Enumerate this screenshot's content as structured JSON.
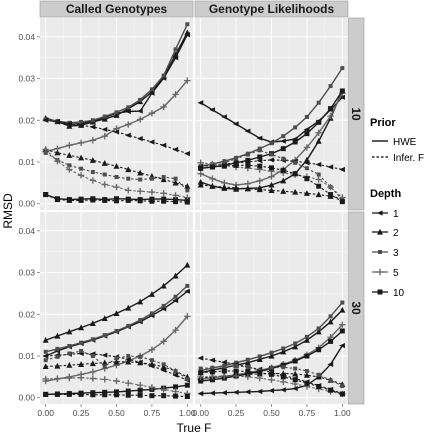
{
  "chart_data": {
    "type": "line",
    "xlabel": "True F",
    "ylabel": "RMSD",
    "x": [
      0,
      0.083,
      0.167,
      0.25,
      0.333,
      0.417,
      0.5,
      0.583,
      0.667,
      0.75,
      0.833,
      0.917,
      1.0
    ],
    "xticks": [
      0,
      0.25,
      0.5,
      0.75,
      1.0
    ],
    "xtick_labels": [
      "0.00",
      "0.25",
      "0.50",
      "0.75",
      "1.00"
    ],
    "yticks": [
      0,
      0.01,
      0.02,
      0.03,
      0.04
    ],
    "ytick_labels": [
      "0.00",
      "0.01",
      "0.02",
      "0.03",
      "0.04"
    ],
    "xlim": [
      -0.04,
      1.04
    ],
    "ylim": [
      -0.0015,
      0.0445
    ],
    "grid": true,
    "col_facets": [
      "Called Genotypes",
      "Genotype Likelihoods"
    ],
    "row_facets": [
      "10",
      "30"
    ],
    "legend": {
      "position": "right",
      "prior_title": "Prior",
      "prior_entries": [
        {
          "label": "HWE",
          "linetype": "solid"
        },
        {
          "label": "Infer. F",
          "linetype": "dashed"
        }
      ],
      "depth_title": "Depth",
      "depth_entries": [
        {
          "label": "1",
          "shape": "tri-left",
          "color": "#1a1a1a"
        },
        {
          "label": "2",
          "shape": "triangle",
          "color": "#1a1a1a"
        },
        {
          "label": "3",
          "shape": "square-small",
          "color": "#4d4d4d"
        },
        {
          "label": "5",
          "shape": "plus",
          "color": "#666666"
        },
        {
          "label": "10",
          "shape": "square",
          "color": "#1a1a1a"
        }
      ]
    },
    "panels": [
      {
        "col": "Called Genotypes",
        "row": "10",
        "series": [
          {
            "prior": "HWE",
            "depth": "1",
            "values": [
              0.0201,
              0.0196,
              0.019,
              0.0192,
              0.0198,
              0.0207,
              0.0217,
              0.0221,
              0.0222,
              0.0265,
              0.0301,
              0.035,
              0.0405
            ]
          },
          {
            "prior": "HWE",
            "depth": "2",
            "values": [
              0.0205,
              0.0197,
              0.0186,
              0.0188,
              0.0196,
              0.0203,
              0.0212,
              0.0228,
              0.0245,
              0.0268,
              0.0305,
              0.0357,
              0.041
            ]
          },
          {
            "prior": "HWE",
            "depth": "3",
            "values": [
              0.0202,
              0.0198,
              0.0194,
              0.0196,
              0.02,
              0.0209,
              0.0219,
              0.0231,
              0.0249,
              0.0274,
              0.0307,
              0.037,
              0.043
            ]
          },
          {
            "prior": "HWE",
            "depth": "5",
            "values": [
              0.0125,
              0.0132,
              0.014,
              0.0146,
              0.0152,
              0.0162,
              0.018,
              0.019,
              0.0202,
              0.0217,
              0.0232,
              0.0262,
              0.0295
            ]
          },
          {
            "prior": "HWE",
            "depth": "10",
            "values": [
              0.0022,
              0.0012,
              0.001,
              0.0011,
              0.0012,
              0.001,
              0.0012,
              0.0011,
              0.001,
              0.0011,
              0.0011,
              0.001,
              0.0008
            ]
          },
          {
            "prior": "Infer. F",
            "depth": "1",
            "values": [
              0.02,
              0.0197,
              0.0192,
              0.0188,
              0.0184,
              0.0178,
              0.0172,
              0.0164,
              0.0156,
              0.0148,
              0.014,
              0.013,
              0.012
            ]
          },
          {
            "prior": "Infer. F",
            "depth": "2",
            "values": [
              0.013,
              0.0122,
              0.0116,
              0.011,
              0.0104,
              0.0097,
              0.009,
              0.0082,
              0.0074,
              0.0066,
              0.0058,
              0.005,
              0.0042
            ]
          },
          {
            "prior": "Infer. F",
            "depth": "3",
            "values": [
              0.0122,
              0.0105,
              0.0092,
              0.0084,
              0.0076,
              0.007,
              0.0064,
              0.006,
              0.0058,
              0.006,
              0.0064,
              0.006,
              0.0032
            ]
          },
          {
            "prior": "Infer. F",
            "depth": "5",
            "values": [
              0.013,
              0.0102,
              0.0082,
              0.0068,
              0.0056,
              0.0046,
              0.004,
              0.0032,
              0.003,
              0.0028,
              0.0025,
              0.002,
              0.0015
            ]
          },
          {
            "prior": "Infer. F",
            "depth": "10",
            "values": [
              0.0022,
              0.001,
              0.0008,
              0.0008,
              0.0009,
              0.0008,
              0.0007,
              0.0008,
              0.0007,
              0.0006,
              0.0006,
              0.0005,
              0.0004
            ]
          }
        ]
      },
      {
        "col": "Genotype Likelihoods",
        "row": "10",
        "series": [
          {
            "prior": "HWE",
            "depth": "1",
            "values": [
              0.0242,
              0.0225,
              0.0208,
              0.0191,
              0.0174,
              0.0157,
              0.0148,
              0.015,
              0.0155,
              0.0178,
              0.0198,
              0.0225,
              0.0255
            ]
          },
          {
            "prior": "HWE",
            "depth": "2",
            "values": [
              0.0052,
              0.0042,
              0.0037,
              0.0035,
              0.0037,
              0.0038,
              0.0045,
              0.0055,
              0.0072,
              0.0105,
              0.015,
              0.0205,
              0.027
            ]
          },
          {
            "prior": "HWE",
            "depth": "3",
            "values": [
              0.009,
              0.0095,
              0.0102,
              0.011,
              0.012,
              0.0132,
              0.0145,
              0.0162,
              0.0183,
              0.0208,
              0.0242,
              0.0282,
              0.0325
            ]
          },
          {
            "prior": "HWE",
            "depth": "5",
            "values": [
              0.0072,
              0.006,
              0.005,
              0.0045,
              0.0048,
              0.0055,
              0.0065,
              0.0082,
              0.0105,
              0.0135,
              0.017,
              0.021,
              0.0265
            ]
          },
          {
            "prior": "HWE",
            "depth": "10",
            "values": [
              0.0085,
              0.0088,
              0.0092,
              0.0098,
              0.0104,
              0.0112,
              0.012,
              0.0132,
              0.0148,
              0.0168,
              0.0195,
              0.0228,
              0.027
            ]
          },
          {
            "prior": "Infer. F",
            "depth": "1",
            "values": [
              0.009,
              0.0092,
              0.0095,
              0.0098,
              0.01,
              0.0103,
              0.0105,
              0.0104,
              0.0102,
              0.0098,
              0.0094,
              0.0088,
              0.0082
            ]
          },
          {
            "prior": "Infer. F",
            "depth": "2",
            "values": [
              0.0045,
              0.0042,
              0.004,
              0.0038,
              0.0036,
              0.0034,
              0.0032,
              0.003,
              0.0028,
              0.0025,
              0.0022,
              0.0018,
              0.0012
            ]
          },
          {
            "prior": "Infer. F",
            "depth": "3",
            "values": [
              0.0085,
              0.009,
              0.0098,
              0.0108,
              0.0118,
              0.0128,
              0.0118,
              0.0108,
              0.0098,
              0.0085,
              0.007,
              0.004,
              0.001
            ]
          },
          {
            "prior": "Infer. F",
            "depth": "5",
            "values": [
              0.0098,
              0.0095,
              0.0092,
              0.0088,
              0.0085,
              0.0082,
              0.0078,
              0.0074,
              0.007,
              0.0065,
              0.0058,
              0.004,
              0.0015
            ]
          },
          {
            "prior": "Infer. F",
            "depth": "10",
            "values": [
              0.0085,
              0.0088,
              0.009,
              0.0092,
              0.0092,
              0.009,
              0.0086,
              0.008,
              0.0072,
              0.006,
              0.0042,
              0.0022,
              0.0005
            ]
          }
        ]
      },
      {
        "col": "Called Genotypes",
        "row": "30",
        "series": [
          {
            "prior": "HWE",
            "depth": "1",
            "values": [
              0.01,
              0.0112,
              0.0122,
              0.013,
              0.0138,
              0.0148,
              0.0158,
              0.017,
              0.0182,
              0.0197,
              0.0213,
              0.0233,
              0.0255
            ]
          },
          {
            "prior": "HWE",
            "depth": "2",
            "values": [
              0.0138,
              0.0148,
              0.0158,
              0.0168,
              0.0178,
              0.019,
              0.0202,
              0.0215,
              0.023,
              0.0248,
              0.0268,
              0.0292,
              0.0318
            ]
          },
          {
            "prior": "HWE",
            "depth": "3",
            "values": [
              0.011,
              0.0117,
              0.0124,
              0.0132,
              0.014,
              0.015,
              0.016,
              0.0172,
              0.0186,
              0.0202,
              0.022,
              0.0242,
              0.0268
            ]
          },
          {
            "prior": "HWE",
            "depth": "5",
            "values": [
              0.004,
              0.0045,
              0.005,
              0.0056,
              0.0062,
              0.007,
              0.0078,
              0.0088,
              0.01,
              0.0115,
              0.0135,
              0.0162,
              0.0195
            ]
          },
          {
            "prior": "HWE",
            "depth": "10",
            "values": [
              0.0008,
              0.0009,
              0.001,
              0.0011,
              0.0012,
              0.0013,
              0.0014,
              0.0016,
              0.0018,
              0.002,
              0.0023,
              0.0026,
              0.003
            ]
          },
          {
            "prior": "Infer. F",
            "depth": "1",
            "values": [
              0.01,
              0.0102,
              0.0104,
              0.0106,
              0.0105,
              0.0102,
              0.0098,
              0.0092,
              0.0085,
              0.0076,
              0.0066,
              0.0054,
              0.0042
            ]
          },
          {
            "prior": "Infer. F",
            "depth": "2",
            "values": [
              0.0075,
              0.0076,
              0.0078,
              0.008,
              0.0082,
              0.0084,
              0.0086,
              0.0086,
              0.0084,
              0.008,
              0.0074,
              0.0064,
              0.005
            ]
          },
          {
            "prior": "Infer. F",
            "depth": "3",
            "values": [
              0.009,
              0.0098,
              0.0106,
              0.0112,
              0.01,
              0.0075,
              0.0095,
              0.01,
              0.0098,
              0.009,
              0.008,
              0.0064,
              0.0045
            ]
          },
          {
            "prior": "Infer. F",
            "depth": "5",
            "values": [
              0.0045,
              0.0046,
              0.0047,
              0.0048,
              0.0046,
              0.0044,
              0.004,
              0.0035,
              0.003,
              0.0025,
              0.002,
              0.0015,
              0.001
            ]
          },
          {
            "prior": "Infer. F",
            "depth": "10",
            "values": [
              0.0008,
              0.0008,
              0.0008,
              0.0008,
              0.0007,
              0.0007,
              0.0007,
              0.0006,
              0.0006,
              0.0005,
              0.0005,
              0.0004,
              0.0003
            ]
          }
        ]
      },
      {
        "col": "Genotype Likelihoods",
        "row": "30",
        "series": [
          {
            "prior": "HWE",
            "depth": "1",
            "values": [
              0.001,
              0.0011,
              0.0012,
              0.0013,
              0.0014,
              0.0015,
              0.0017,
              0.0019,
              0.0022,
              0.003,
              0.005,
              0.008,
              0.0125
            ]
          },
          {
            "prior": "HWE",
            "depth": "2",
            "values": [
              0.006,
              0.0066,
              0.0072,
              0.0078,
              0.0084,
              0.0092,
              0.01,
              0.011,
              0.0122,
              0.0138,
              0.0158,
              0.0182,
              0.021
            ]
          },
          {
            "prior": "HWE",
            "depth": "3",
            "values": [
              0.0065,
              0.0071,
              0.0077,
              0.0084,
              0.0091,
              0.0099,
              0.0108,
              0.0118,
              0.013,
              0.0146,
              0.0166,
              0.0195,
              0.0228
            ]
          },
          {
            "prior": "HWE",
            "depth": "5",
            "values": [
              0.0045,
              0.0048,
              0.0051,
              0.0055,
              0.006,
              0.0065,
              0.0072,
              0.008,
              0.009,
              0.0103,
              0.012,
              0.0145,
              0.0175
            ]
          },
          {
            "prior": "HWE",
            "depth": "10",
            "values": [
              0.004,
              0.0043,
              0.0047,
              0.0052,
              0.0057,
              0.0063,
              0.007,
              0.0078,
              0.0088,
              0.01,
              0.0115,
              0.0135,
              0.016
            ]
          },
          {
            "prior": "Infer. F",
            "depth": "1",
            "values": [
              0.0095,
              0.009,
              0.0085,
              0.008,
              0.0074,
              0.0068,
              0.0061,
              0.0054,
              0.0046,
              0.0038,
              0.0029,
              0.002,
              0.001
            ]
          },
          {
            "prior": "Infer. F",
            "depth": "2",
            "values": [
              0.0048,
              0.005,
              0.0052,
              0.0054,
              0.0056,
              0.0057,
              0.0058,
              0.0058,
              0.0057,
              0.0054,
              0.005,
              0.0042,
              0.0032
            ]
          },
          {
            "prior": "Infer. F",
            "depth": "3",
            "values": [
              0.007,
              0.0072,
              0.0075,
              0.0076,
              0.0074,
              0.0065,
              0.0072,
              0.0073,
              0.007,
              0.0064,
              0.0055,
              0.0042,
              0.0028
            ]
          },
          {
            "prior": "Infer. F",
            "depth": "5",
            "values": [
              0.005,
              0.0051,
              0.0052,
              0.0052,
              0.005,
              0.0047,
              0.0043,
              0.0038,
              0.0033,
              0.0027,
              0.0021,
              0.0015,
              0.0009
            ]
          },
          {
            "prior": "Infer. F",
            "depth": "10",
            "values": [
              0.006,
              0.0062,
              0.0064,
              0.0064,
              0.0063,
              0.006,
              0.0056,
              0.005,
              0.0043,
              0.0035,
              0.0027,
              0.0018,
              0.0009
            ]
          }
        ]
      }
    ]
  }
}
